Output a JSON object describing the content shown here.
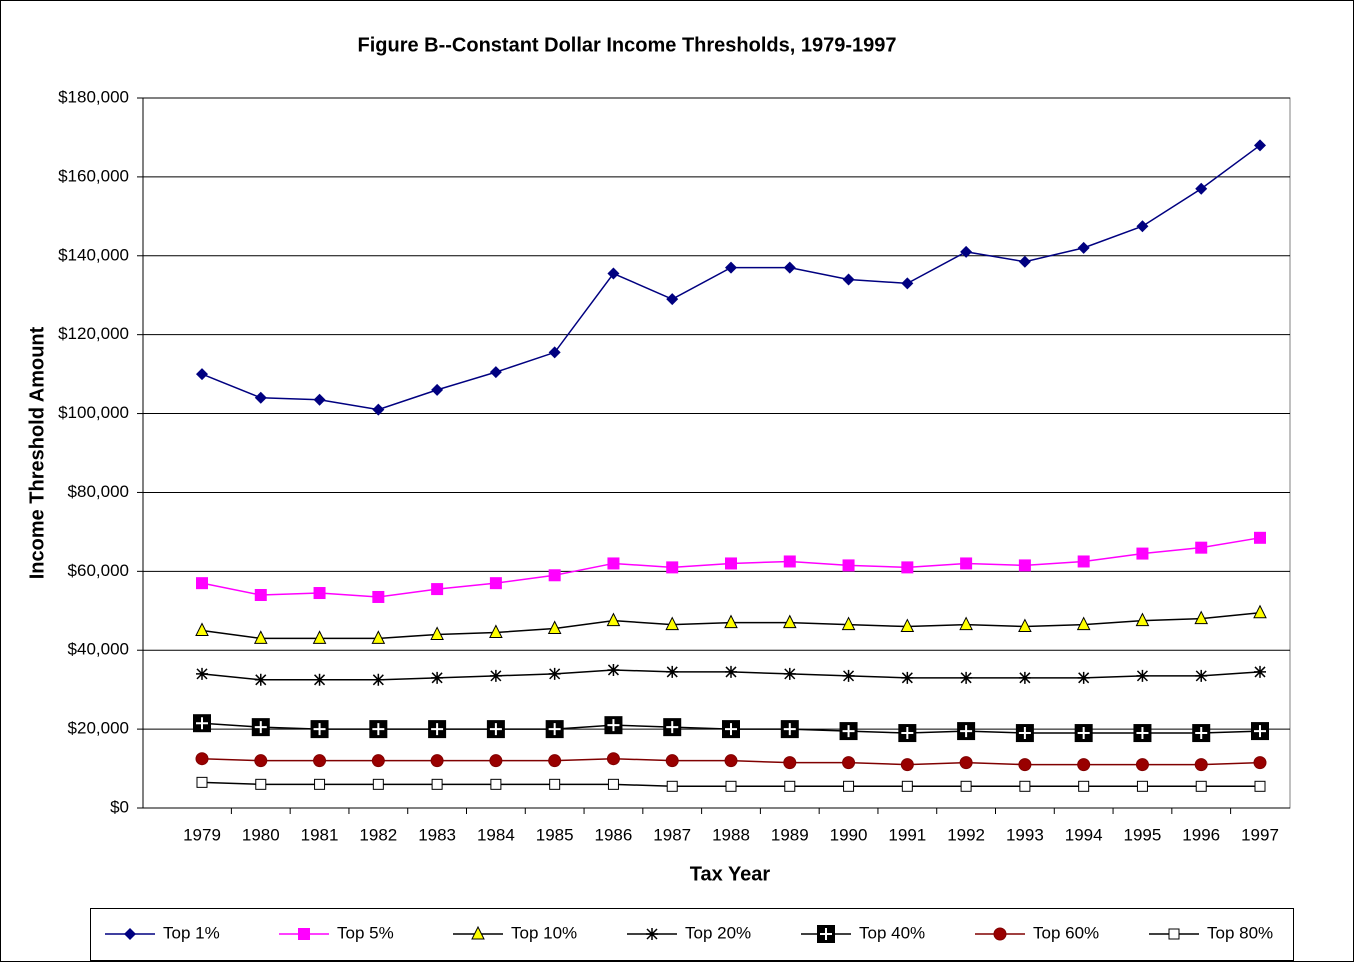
{
  "chart_data": {
    "type": "line",
    "title": "Figure B--Constant Dollar Income Thresholds, 1979-1997",
    "x_label": "Tax Year",
    "y_label": "Income Threshold Amount",
    "categories": [
      "1979",
      "1980",
      "1981",
      "1982",
      "1983",
      "1984",
      "1985",
      "1986",
      "1987",
      "1988",
      "1989",
      "1990",
      "1991",
      "1992",
      "1993",
      "1994",
      "1995",
      "1996",
      "1997"
    ],
    "ylim": [
      0,
      180000
    ],
    "yticks": [
      {
        "value": 0,
        "label": "$0"
      },
      {
        "value": 20000,
        "label": "$20,000"
      },
      {
        "value": 40000,
        "label": "$40,000"
      },
      {
        "value": 60000,
        "label": "$60,000"
      },
      {
        "value": 80000,
        "label": "$80,000"
      },
      {
        "value": 100000,
        "label": "$100,000"
      },
      {
        "value": 120000,
        "label": "$120,000"
      },
      {
        "value": 140000,
        "label": "$140,000"
      },
      {
        "value": 160000,
        "label": "$160,000"
      },
      {
        "value": 180000,
        "label": "$180,000"
      }
    ],
    "grid": true,
    "legend": "bottom",
    "series": [
      {
        "name": "Top 1%",
        "color": "#000080",
        "marker": "diamond",
        "marker_color": "#000080",
        "values": [
          110000,
          104000,
          103500,
          101000,
          106000,
          110500,
          115500,
          135500,
          129000,
          137000,
          137000,
          134000,
          133000,
          141000,
          138500,
          142000,
          147500,
          157000,
          168000
        ]
      },
      {
        "name": "Top 5%",
        "color": "#ff00ff",
        "marker": "square",
        "marker_color": "#ff00ff",
        "values": [
          57000,
          54000,
          54500,
          53500,
          55500,
          57000,
          59000,
          62000,
          61000,
          62000,
          62500,
          61500,
          61000,
          62000,
          61500,
          62500,
          64500,
          66000,
          68500
        ]
      },
      {
        "name": "Top 10%",
        "color": "#000000",
        "marker": "triangle",
        "marker_color": "#ffff00",
        "values": [
          45000,
          43000,
          43000,
          43000,
          44000,
          44500,
          45500,
          47500,
          46500,
          47000,
          47000,
          46500,
          46000,
          46500,
          46000,
          46500,
          47500,
          48000,
          49500
        ]
      },
      {
        "name": "Top 20%",
        "color": "#000000",
        "marker": "star",
        "marker_color": "#000000",
        "values": [
          34000,
          32500,
          32500,
          32500,
          33000,
          33500,
          34000,
          35000,
          34500,
          34500,
          34000,
          33500,
          33000,
          33000,
          33000,
          33000,
          33500,
          33500,
          34500
        ]
      },
      {
        "name": "Top 40%",
        "color": "#000000",
        "marker": "plus-box",
        "marker_color": "#000000",
        "values": [
          21500,
          20500,
          20000,
          20000,
          20000,
          20000,
          20000,
          21000,
          20500,
          20000,
          20000,
          19500,
          19000,
          19500,
          19000,
          19000,
          19000,
          19000,
          19500
        ]
      },
      {
        "name": "Top 60%",
        "color": "#800000",
        "marker": "circle",
        "marker_color": "#990000",
        "values": [
          12500,
          12000,
          12000,
          12000,
          12000,
          12000,
          12000,
          12500,
          12000,
          12000,
          11500,
          11500,
          11000,
          11500,
          11000,
          11000,
          11000,
          11000,
          11500
        ]
      },
      {
        "name": "Top 80%",
        "color": "#000000",
        "marker": "hollow-square",
        "marker_color": "#ffffff",
        "values": [
          6500,
          6000,
          6000,
          6000,
          6000,
          6000,
          6000,
          6000,
          5500,
          5500,
          5500,
          5500,
          5500,
          5500,
          5500,
          5500,
          5500,
          5500,
          5500
        ]
      }
    ]
  }
}
